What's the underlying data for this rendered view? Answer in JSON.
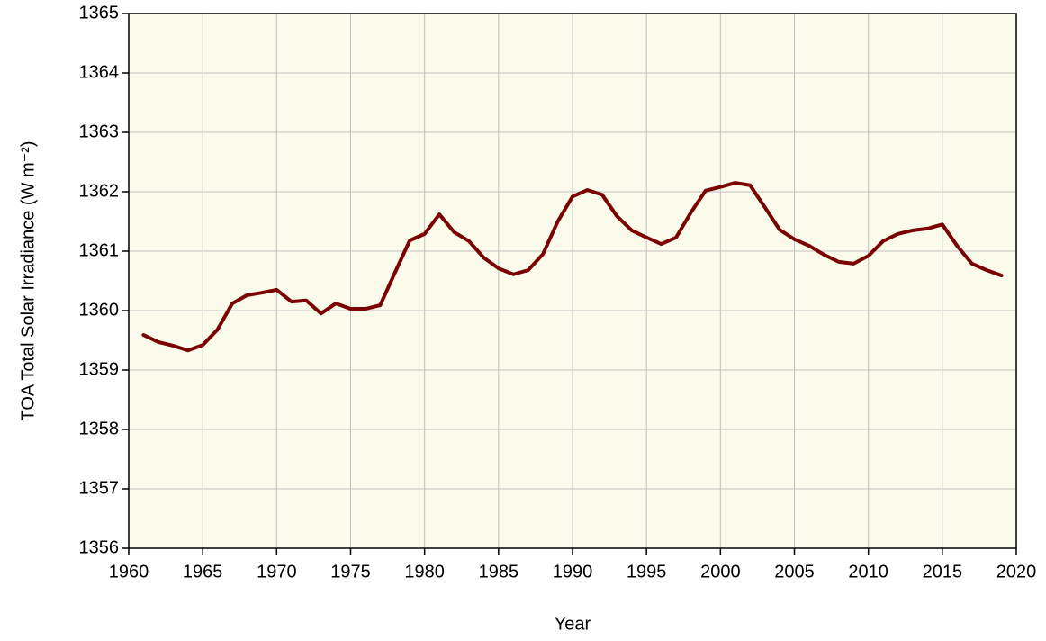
{
  "chart_data": {
    "type": "line",
    "x_label": "Year",
    "y_label": "TOA Total Solar Irradiance (W m⁻²)",
    "x": [
      1961,
      1962,
      1963,
      1964,
      1965,
      1966,
      1967,
      1968,
      1969,
      1970,
      1971,
      1972,
      1973,
      1974,
      1975,
      1976,
      1977,
      1978,
      1979,
      1980,
      1981,
      1982,
      1983,
      1984,
      1985,
      1986,
      1987,
      1988,
      1989,
      1990,
      1991,
      1992,
      1993,
      1994,
      1995,
      1996,
      1997,
      1998,
      1999,
      2000,
      2001,
      2002,
      2003,
      2004,
      2005,
      2006,
      2007,
      2008,
      2009,
      2010,
      2011,
      2012,
      2013,
      2014,
      2015,
      2016,
      2017,
      2018,
      2019
    ],
    "series": [
      {
        "color": "#7b0000",
        "values": [
          1359.59,
          1359.47,
          1359.41,
          1359.33,
          1359.42,
          1359.68,
          1360.12,
          1360.26,
          1360.3,
          1360.35,
          1360.15,
          1360.17,
          1359.95,
          1360.12,
          1360.03,
          1360.03,
          1360.09,
          1360.64,
          1361.18,
          1361.29,
          1361.62,
          1361.32,
          1361.17,
          1360.89,
          1360.71,
          1360.61,
          1360.68,
          1360.95,
          1361.5,
          1361.92,
          1362.03,
          1361.95,
          1361.59,
          1361.35,
          1361.23,
          1361.12,
          1361.23,
          1361.65,
          1362.02,
          1362.08,
          1362.15,
          1362.11,
          1361.74,
          1361.36,
          1361.2,
          1361.09,
          1360.94,
          1360.82,
          1360.79,
          1360.92,
          1361.17,
          1361.29,
          1361.35,
          1361.38,
          1361.45,
          1361.09,
          1360.79,
          1360.68,
          1360.59
        ]
      }
    ],
    "xlim": [
      1960,
      2020
    ],
    "xticks": [
      1960,
      1965,
      1970,
      1975,
      1980,
      1985,
      1990,
      1995,
      2000,
      2005,
      2010,
      2015,
      2020
    ],
    "ylim": [
      1356,
      1365
    ],
    "yticks": [
      1356,
      1357,
      1358,
      1359,
      1360,
      1361,
      1362,
      1363,
      1364,
      1365
    ],
    "grid": true,
    "background": "#fbfbeb"
  }
}
